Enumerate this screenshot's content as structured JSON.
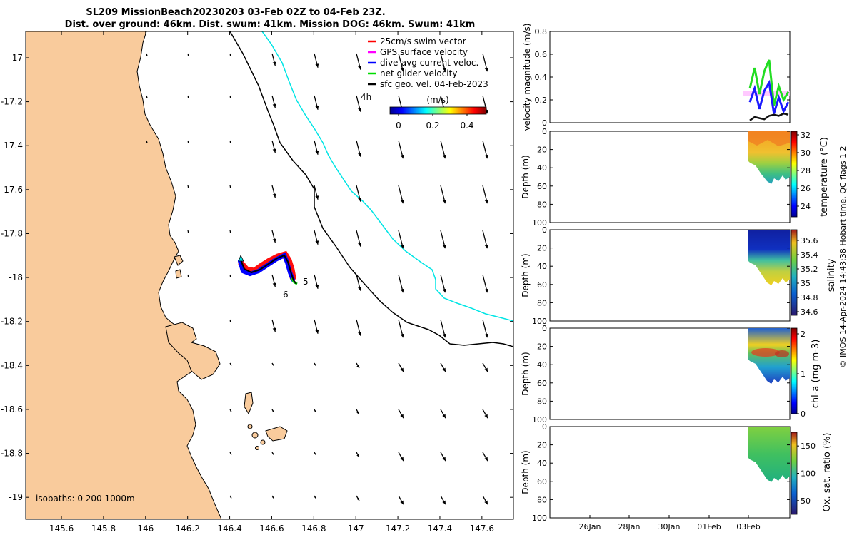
{
  "title": {
    "line1": "SL209 MissionBeach20230203 03-Feb 02Z to 04-Feb 23Z.",
    "line2": "Dist. over ground: 46km. Dist. swum: 41km. Mission DOG: 46km. Swum: 41km"
  },
  "map": {
    "x_ticks": [
      "145.6",
      "145.8",
      "146",
      "146.2",
      "146.4",
      "146.6",
      "146.8",
      "147",
      "147.2",
      "147.4",
      "147.6"
    ],
    "y_ticks": [
      "-17",
      "-17.2",
      "-17.4",
      "-17.6",
      "-17.8",
      "-18",
      "-18.2",
      "-18.4",
      "-18.6",
      "-18.8",
      "-19"
    ],
    "xlim": [
      145.43,
      147.75
    ],
    "ylim": [
      -19.1,
      -16.88
    ],
    "legend": [
      {
        "label": "25cm/s swim vector",
        "color": "#ff0000"
      },
      {
        "label": "GPS surface velocity",
        "color": "#ff00ff"
      },
      {
        "label": "dive-avg current veloc.",
        "color": "#0000ff"
      },
      {
        "label": "net glider velocity",
        "color": "#00dd00"
      },
      {
        "label": "sfc geo. vel. 04-Feb-2023",
        "color": "#000000"
      }
    ],
    "time_marks": [
      "4h",
      "5",
      "6"
    ],
    "colorbar_label": "(m/s)",
    "colorbar_ticks": [
      "0",
      "0.2",
      "0.4"
    ],
    "isobaths_text": "isobaths: 0   200  1000m",
    "land_color": "#f9cb9c",
    "isobath_200_color": "#000000",
    "isobath_1000_color": "#00e5e5"
  },
  "panels": {
    "velocity": {
      "ylabel": "velocity magnitude (m/s)",
      "ticks": [
        "0",
        "0.2",
        "0.4",
        "0.6",
        "0.8"
      ]
    },
    "temperature": {
      "ylabel": "Depth (m)",
      "cblabel": "temperature (°C)",
      "cbticks": [
        "24",
        "26",
        "28",
        "30",
        "32"
      ]
    },
    "salinity": {
      "ylabel": "Depth (m)",
      "cblabel": "salinity",
      "cbticks": [
        "34.6",
        "34.8",
        "35",
        "35.2",
        "35.4",
        "35.6"
      ]
    },
    "chla": {
      "ylabel": "Depth (m)",
      "cblabel": "chl-a (mg m-3)",
      "cbticks": [
        "0",
        "1",
        "2"
      ]
    },
    "oxygen": {
      "ylabel": "Depth (m)",
      "cblabel": "Ox. sat. ratio (%)",
      "cbticks": [
        "50",
        "100",
        "150"
      ]
    },
    "depth_ticks": [
      "0",
      "20",
      "40",
      "60",
      "80",
      "100"
    ],
    "date_ticks": [
      "26Jan",
      "28Jan",
      "30Jan",
      "01Feb",
      "03Feb"
    ]
  },
  "footer": "© IMOS 14-Apr-2024 14:43:38 Hobart time. QC flags 1  2",
  "chart_data": {
    "type": "scatter",
    "title": "SL209 MissionBeach20230203 03-Feb 02Z to 04-Feb 23Z.",
    "subtitle": "Dist. over ground: 46km. Dist. swum: 41km. Mission DOG: 46km. Swum: 41km",
    "glider_track": {
      "lon": [
        146.45,
        146.47,
        146.5,
        146.53,
        146.56,
        146.59,
        146.62,
        146.65,
        146.67,
        146.68,
        146.69,
        146.7,
        146.71
      ],
      "lat": [
        -17.97,
        -17.99,
        -18.0,
        -17.99,
        -17.98,
        -17.96,
        -17.95,
        -17.94,
        -17.96,
        -17.99,
        -18.02,
        -18.04,
        -18.05
      ]
    },
    "velocity_series": [
      {
        "name": "net glider velocity",
        "x": [
          "03Feb 00Z",
          "03Feb 06Z",
          "03Feb 12Z",
          "03Feb 18Z",
          "04Feb 00Z",
          "04Feb 06Z",
          "04Feb 12Z",
          "04Feb 18Z",
          "04Feb 23Z"
        ],
        "values": [
          0.3,
          0.48,
          0.25,
          0.45,
          0.55,
          0.15,
          0.32,
          0.2,
          0.27
        ]
      },
      {
        "name": "dive-avg current veloc.",
        "x": [
          "03Feb 00Z",
          "03Feb 06Z",
          "03Feb 12Z",
          "03Feb 18Z",
          "04Feb 00Z",
          "04Feb 06Z",
          "04Feb 12Z",
          "04Feb 18Z",
          "04Feb 23Z"
        ],
        "values": [
          0.18,
          0.3,
          0.12,
          0.28,
          0.35,
          0.08,
          0.22,
          0.1,
          0.18
        ]
      },
      {
        "name": "sfc geo. vel. 04-Feb-2023",
        "x": [
          "03Feb 00Z",
          "03Feb 06Z",
          "03Feb 12Z",
          "03Feb 18Z",
          "04Feb 00Z",
          "04Feb 06Z",
          "04Feb 12Z",
          "04Feb 18Z",
          "04Feb 23Z"
        ],
        "values": [
          0.02,
          0.05,
          0.04,
          0.03,
          0.06,
          0.07,
          0.06,
          0.08,
          0.07
        ]
      }
    ],
    "ylim_velocity": [
      0,
      0.8
    ],
    "ylim_depth": [
      100,
      0
    ]
  }
}
